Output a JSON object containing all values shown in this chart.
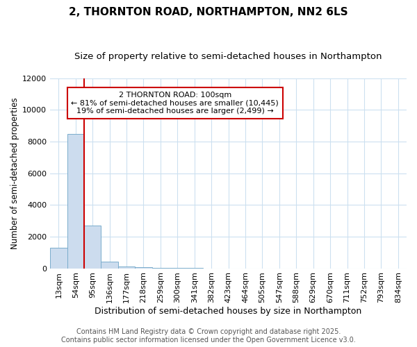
{
  "title1": "2, THORNTON ROAD, NORTHAMPTON, NN2 6LS",
  "title2": "Size of property relative to semi-detached houses in Northampton",
  "xlabel": "Distribution of semi-detached houses by size in Northampton",
  "ylabel": "Number of semi-detached properties",
  "categories": [
    "13sqm",
    "54sqm",
    "95sqm",
    "136sqm",
    "177sqm",
    "218sqm",
    "259sqm",
    "300sqm",
    "341sqm",
    "382sqm",
    "423sqm",
    "464sqm",
    "505sqm",
    "547sqm",
    "588sqm",
    "629sqm",
    "670sqm",
    "711sqm",
    "752sqm",
    "793sqm",
    "834sqm"
  ],
  "bar_heights": [
    1300,
    8500,
    2700,
    400,
    100,
    50,
    20,
    10,
    5,
    3,
    2,
    1,
    1,
    0,
    0,
    0,
    0,
    0,
    0,
    0,
    0
  ],
  "bar_color": "#ccdcee",
  "bar_edgecolor": "#7aadcc",
  "vline_color": "#cc0000",
  "vline_x_index": 2,
  "annotation_text": "2 THORNTON ROAD: 100sqm\n← 81% of semi-detached houses are smaller (10,445)\n19% of semi-detached houses are larger (2,499) →",
  "annotation_box_color": "#cc0000",
  "annotation_facecolor": "white",
  "ylim": [
    0,
    12000
  ],
  "yticks": [
    0,
    2000,
    4000,
    6000,
    8000,
    10000,
    12000
  ],
  "footer": "Contains HM Land Registry data © Crown copyright and database right 2025.\nContains public sector information licensed under the Open Government Licence v3.0.",
  "bg_color": "#ffffff",
  "plot_bg_color": "#ffffff",
  "grid_color": "#cce0f0",
  "title1_fontsize": 11,
  "title2_fontsize": 9.5,
  "xlabel_fontsize": 9,
  "ylabel_fontsize": 8.5,
  "tick_fontsize": 8,
  "footer_fontsize": 7
}
